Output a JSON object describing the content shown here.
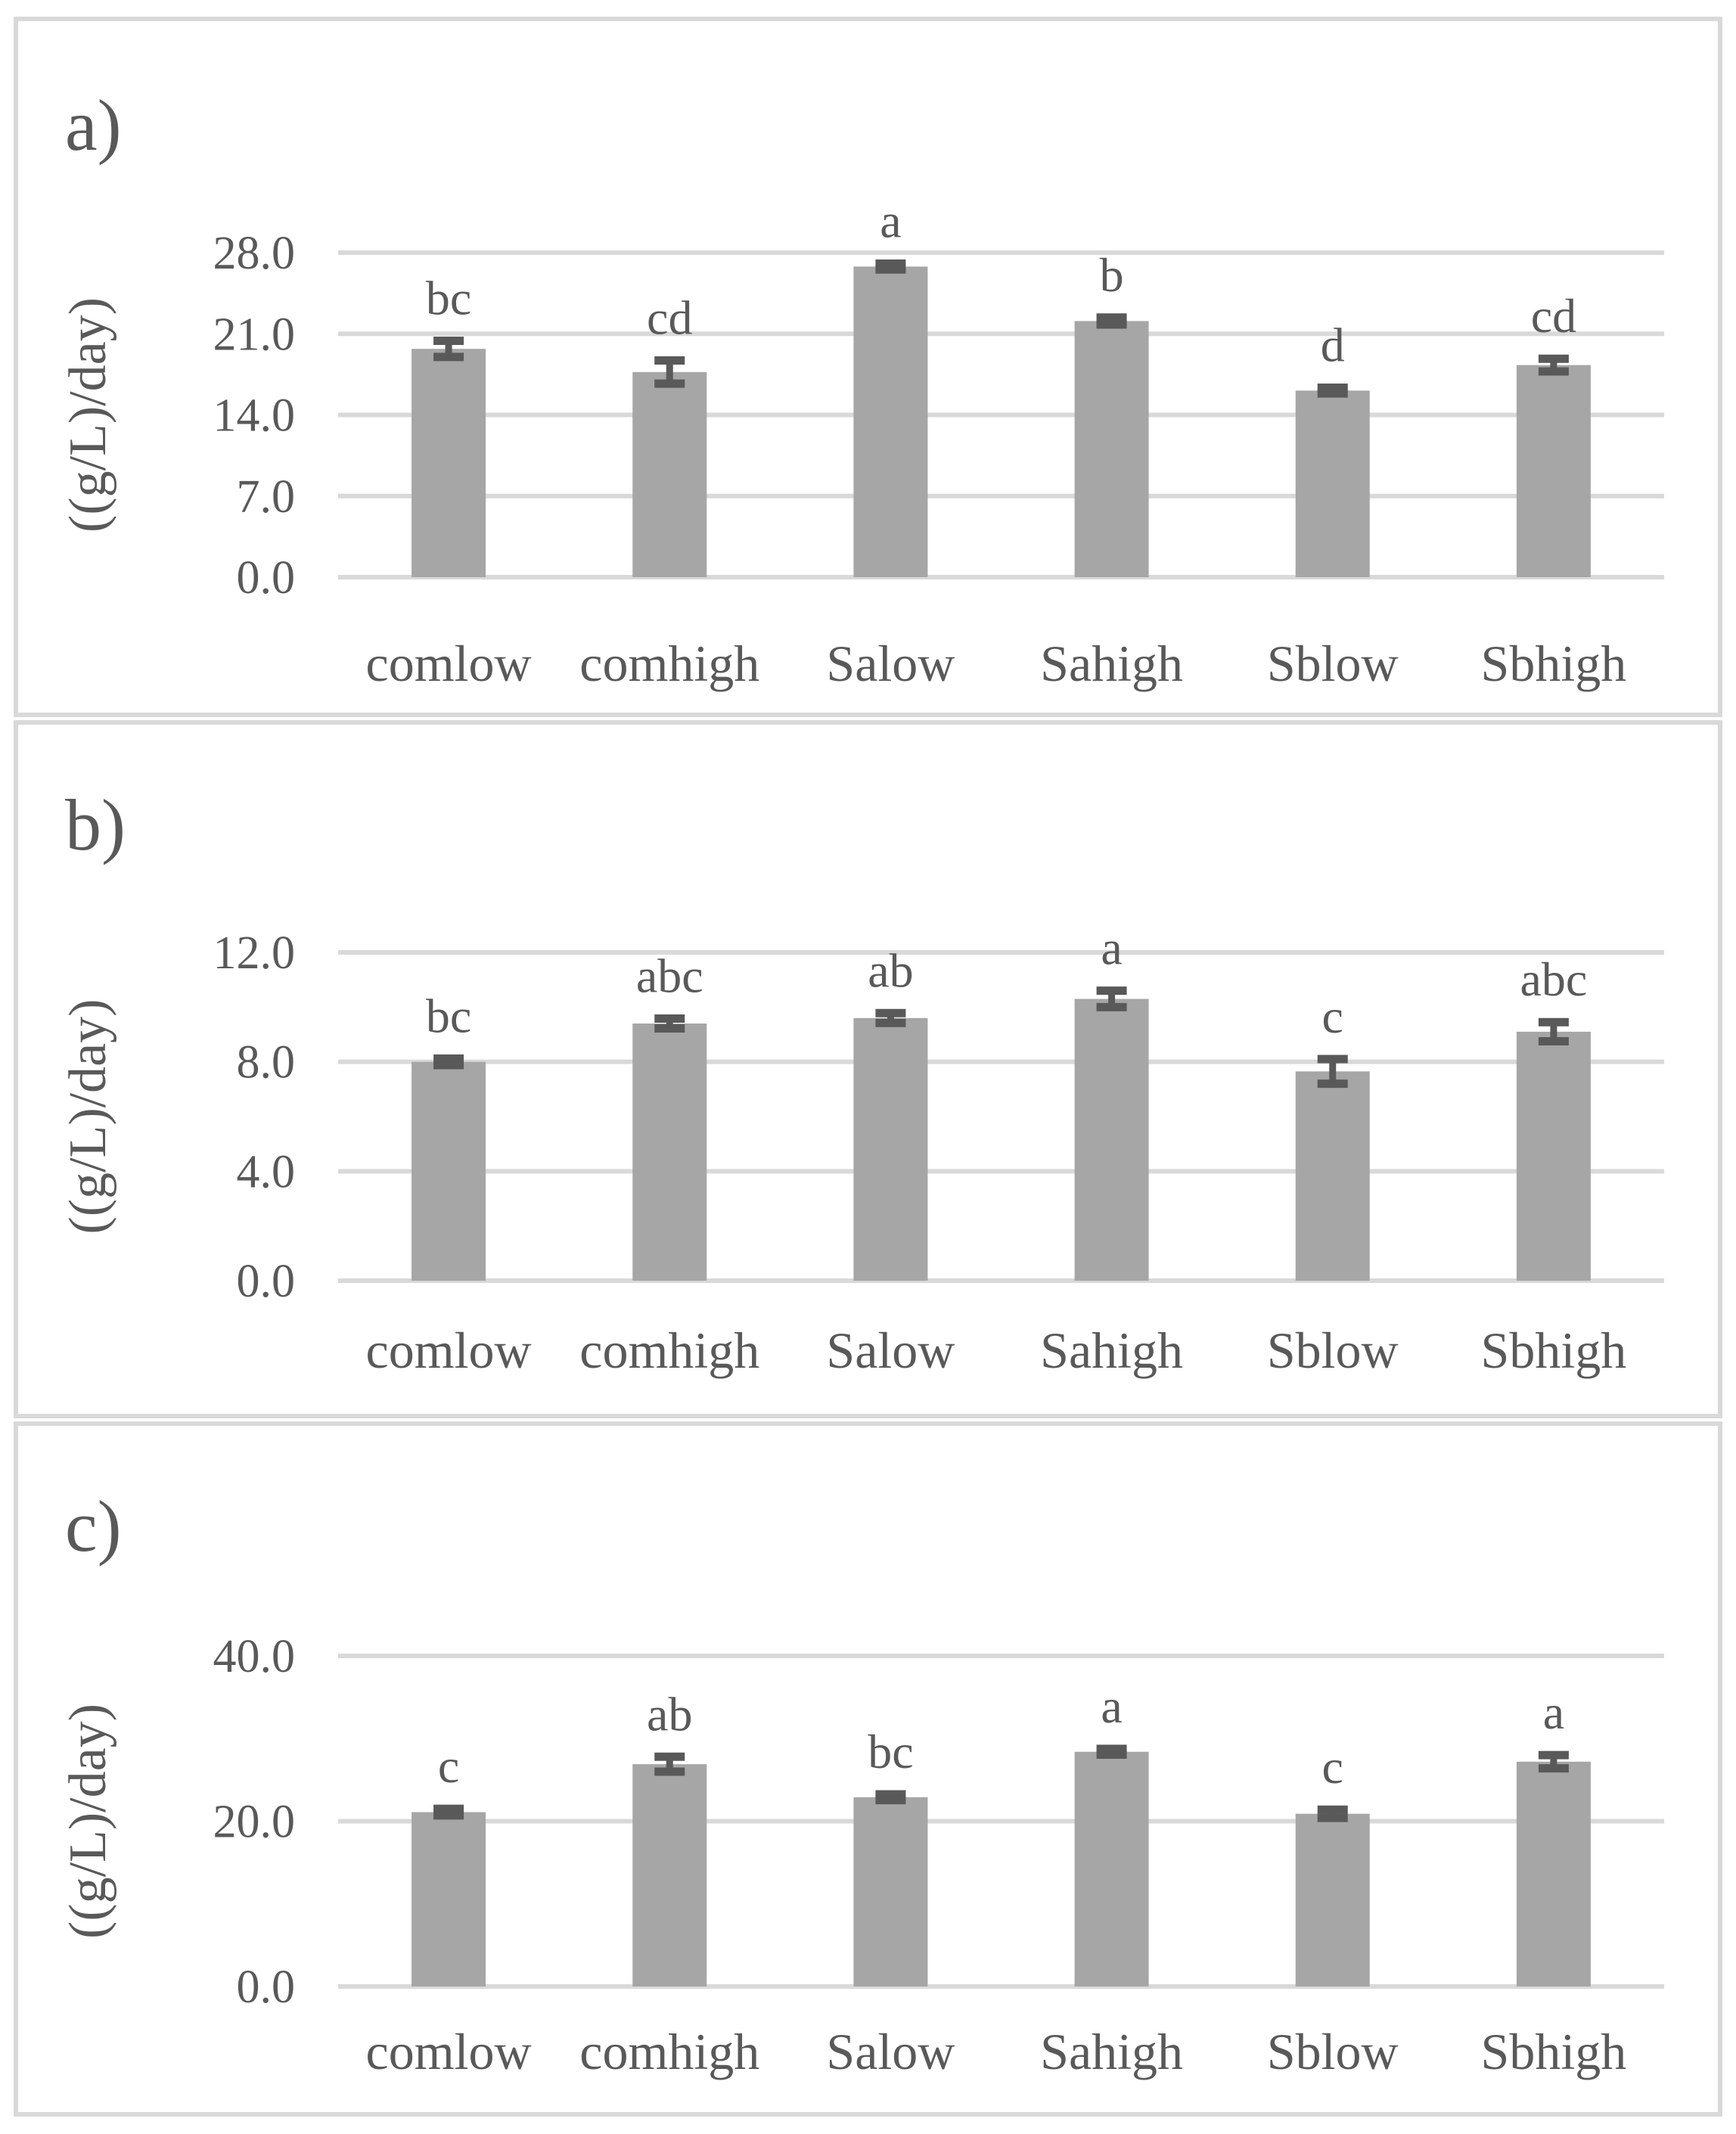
{
  "figure": {
    "bar_color": "#a6a6a6",
    "error_bar_color": "#595959",
    "gridline_color": "#d9d9d9",
    "text_color": "#595959",
    "panel_border_color": "#d9d9d9",
    "background_color": "#ffffff"
  },
  "chart_data": [
    {
      "type": "bar",
      "panel_label": "a)",
      "title": "",
      "xlabel": "",
      "ylabel": "((g/L)/day)",
      "categories": [
        "comlow",
        "comhigh",
        "Salow",
        "Sahigh",
        "Sblow",
        "Sbhigh"
      ],
      "values": [
        19.7,
        17.7,
        26.8,
        22.1,
        16.1,
        18.3
      ],
      "errors": [
        0.7,
        1.0,
        0.25,
        0.3,
        0.25,
        0.55
      ],
      "sig_letters": [
        "bc",
        "cd",
        "a",
        "b",
        "d",
        "cd"
      ],
      "yticks": [
        0,
        7,
        14,
        21,
        28
      ],
      "ytick_labels": [
        "0.0",
        "7.0",
        "14.0",
        "21.0",
        "28.0"
      ],
      "ylim": [
        0,
        28
      ],
      "grid": true,
      "legend": false
    },
    {
      "type": "bar",
      "panel_label": "b)",
      "title": "",
      "xlabel": "",
      "ylabel": "((g/L)/day)",
      "categories": [
        "comlow",
        "comhigh",
        "Salow",
        "Sahigh",
        "Sblow",
        "Sbhigh"
      ],
      "values": [
        8.0,
        9.4,
        9.6,
        10.3,
        7.65,
        9.1
      ],
      "errors": [
        0.12,
        0.18,
        0.18,
        0.3,
        0.45,
        0.35
      ],
      "sig_letters": [
        "bc",
        "abc",
        "ab",
        "a",
        "c",
        "abc"
      ],
      "yticks": [
        0,
        4,
        8,
        12
      ],
      "ytick_labels": [
        "0.0",
        "4.0",
        "8.0",
        "12.0"
      ],
      "ylim": [
        0,
        12
      ],
      "grid": true,
      "legend": false
    },
    {
      "type": "bar",
      "panel_label": "c)",
      "title": "",
      "xlabel": "",
      "ylabel": "((g/L)/day)",
      "categories": [
        "comlow",
        "comhigh",
        "Salow",
        "Sahigh",
        "Sblow",
        "Sbhigh"
      ],
      "values": [
        21.1,
        26.9,
        22.9,
        28.4,
        20.9,
        27.2
      ],
      "errors": [
        0.4,
        0.9,
        0.35,
        0.35,
        0.5,
        0.8
      ],
      "sig_letters": [
        "c",
        "ab",
        "bc",
        "a",
        "c",
        "a"
      ],
      "yticks": [
        0,
        20,
        40
      ],
      "ytick_labels": [
        "0.0",
        "20.0",
        "40.0"
      ],
      "ylim": [
        0,
        40
      ],
      "grid": true,
      "legend": false
    }
  ]
}
